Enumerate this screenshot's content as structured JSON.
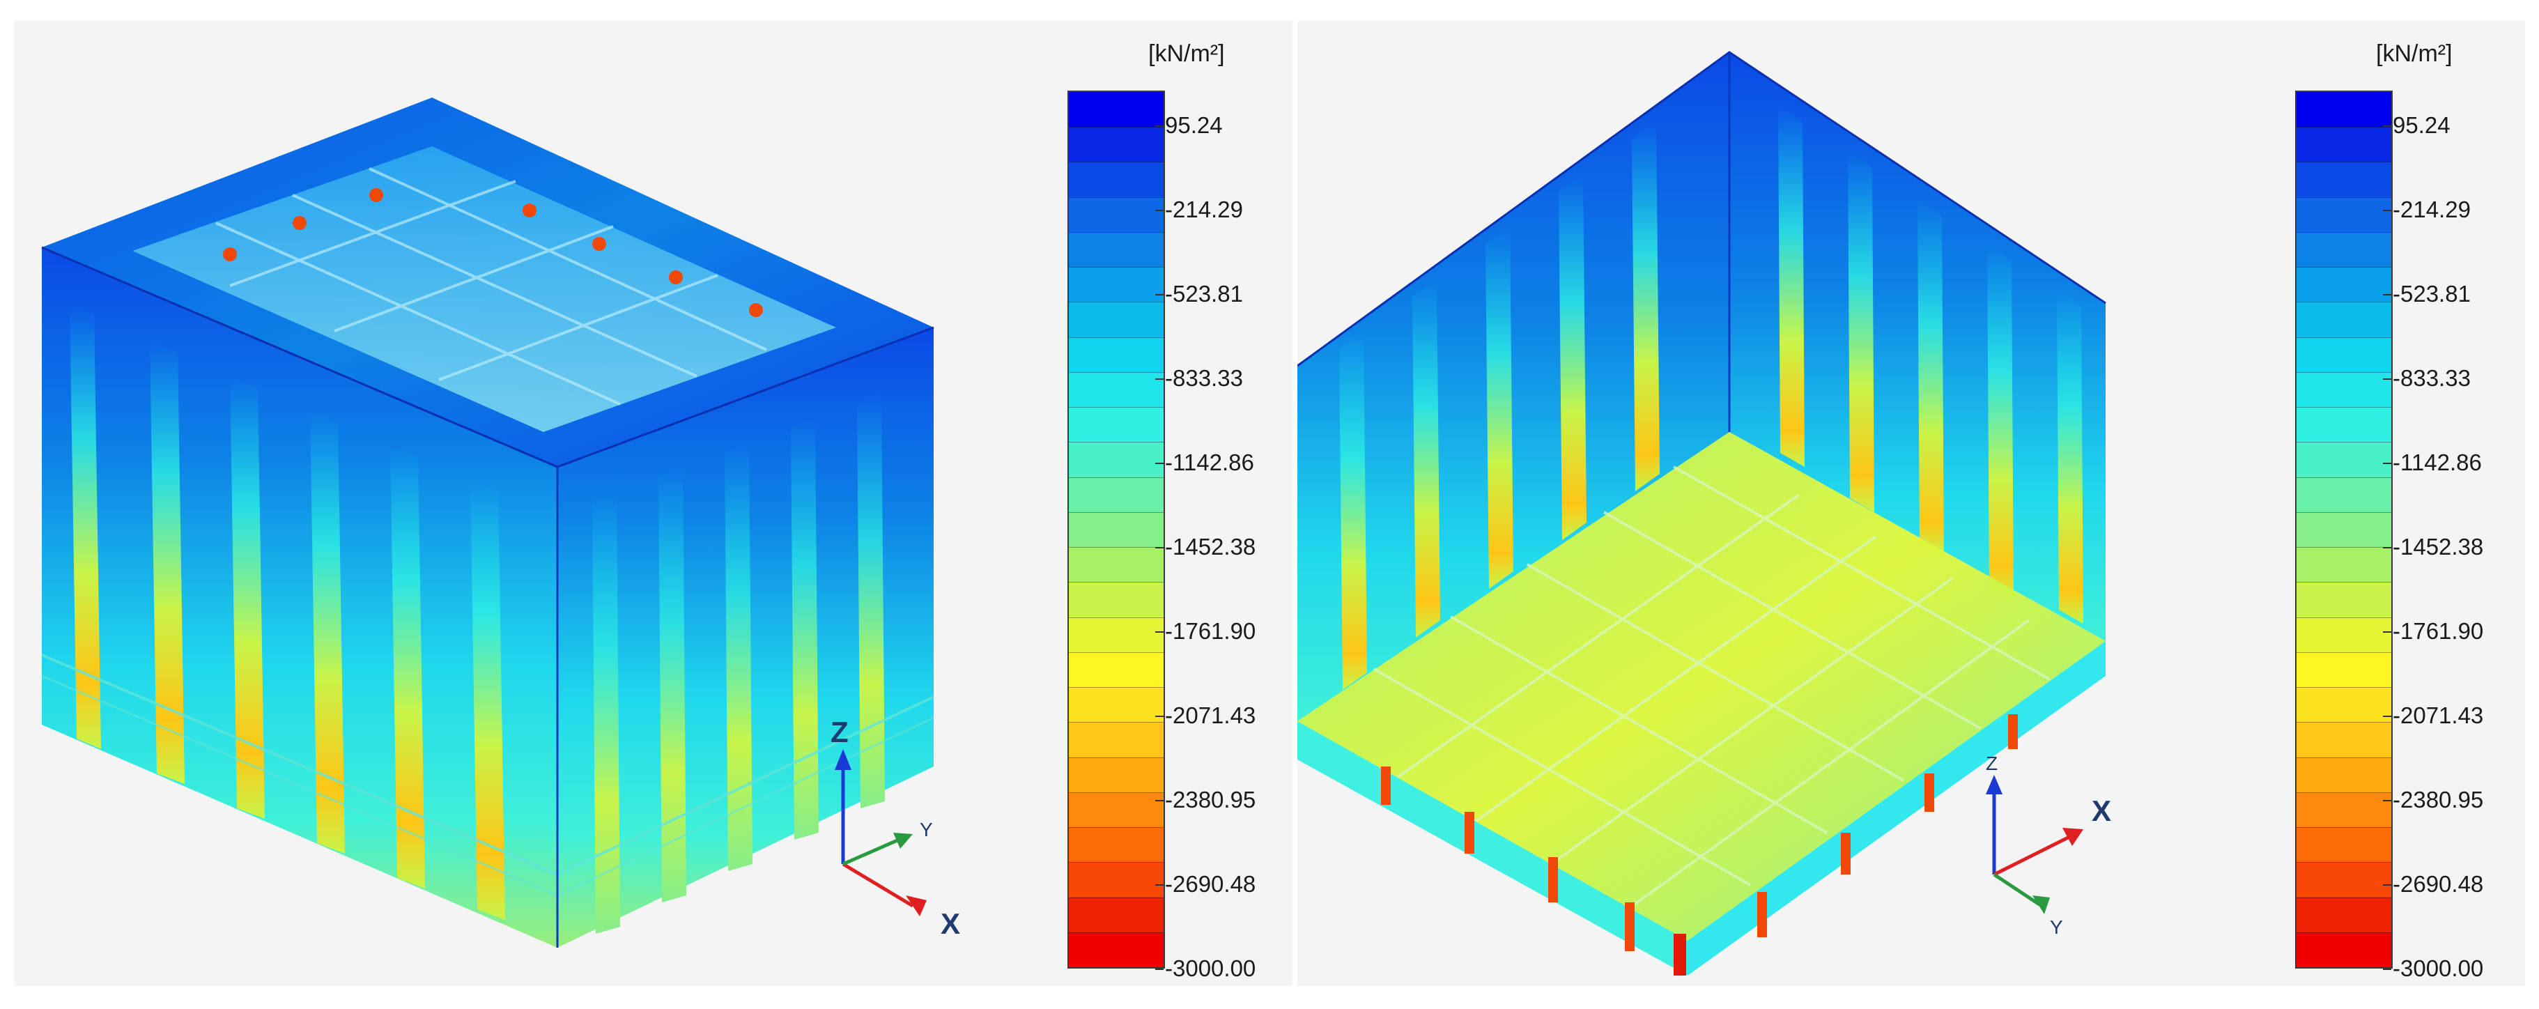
{
  "legend_unit": "[kN/m²]",
  "legend_ticks": [
    "95.24",
    "-214.29",
    "-523.81",
    "-833.33",
    "-1142.86",
    "-1452.38",
    "-1761.90",
    "-2071.43",
    "-2380.95",
    "-2690.48",
    "-3000.00"
  ],
  "legend_colors": [
    "#0000f0",
    "#0a28e8",
    "#0b4ae6",
    "#0e67e4",
    "#0d82e6",
    "#0aa0ea",
    "#09bcea",
    "#12d4ee",
    "#20e6ec",
    "#2ff0e2",
    "#49f1c8",
    "#66f0a8",
    "#86ee88",
    "#a8f066",
    "#c8f44a",
    "#e4f634",
    "#fdf623",
    "#fde21e",
    "#fec616",
    "#feaa0f",
    "#fe8a0b",
    "#fd6a08",
    "#f84806",
    "#f02204",
    "#f00000"
  ],
  "axes": {
    "left": {
      "x": "X",
      "y": "Y",
      "z": "Z"
    },
    "right": {
      "x": "X",
      "y": "Y",
      "z": "Z"
    }
  }
}
